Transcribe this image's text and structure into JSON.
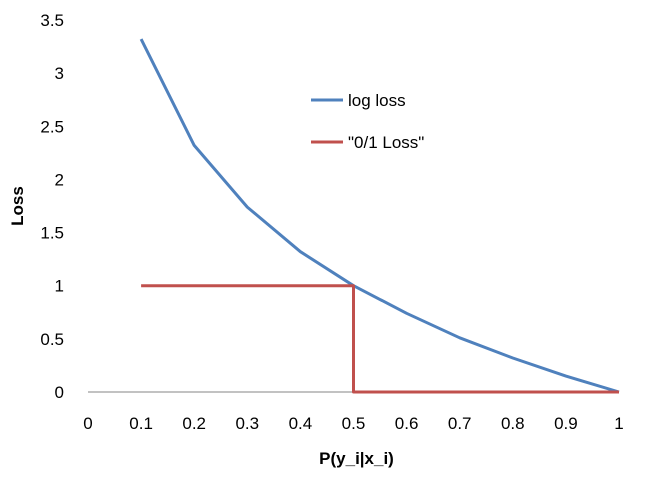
{
  "chart_data": {
    "type": "line",
    "title": "",
    "xlabel": "P(y_i|x_i)",
    "ylabel": "Loss",
    "xlim": [
      0,
      1
    ],
    "ylim": [
      0,
      3.5
    ],
    "x_ticks": [
      "0",
      "0.1",
      "0.2",
      "0.3",
      "0.4",
      "0.5",
      "0.6",
      "0.7",
      "0.8",
      "0.9",
      "1"
    ],
    "y_ticks": [
      "0",
      "0.5",
      "1",
      "1.5",
      "2",
      "2.5",
      "3",
      "3.5"
    ],
    "grid": false,
    "legend_position": "upper-middle",
    "series": [
      {
        "name": "log loss",
        "color": "#4F81BD",
        "points": [
          [
            0.1,
            3.32
          ],
          [
            0.2,
            2.32
          ],
          [
            0.3,
            1.74
          ],
          [
            0.4,
            1.32
          ],
          [
            0.5,
            1.0
          ],
          [
            0.6,
            0.74
          ],
          [
            0.7,
            0.51
          ],
          [
            0.8,
            0.32
          ],
          [
            0.9,
            0.15
          ],
          [
            1.0,
            0.0
          ]
        ]
      },
      {
        "name": "\"0/1 Loss\"",
        "color": "#C0504D",
        "points": [
          [
            0.1,
            1
          ],
          [
            0.5,
            1
          ],
          [
            0.5,
            0
          ],
          [
            1.0,
            0
          ]
        ]
      }
    ]
  }
}
